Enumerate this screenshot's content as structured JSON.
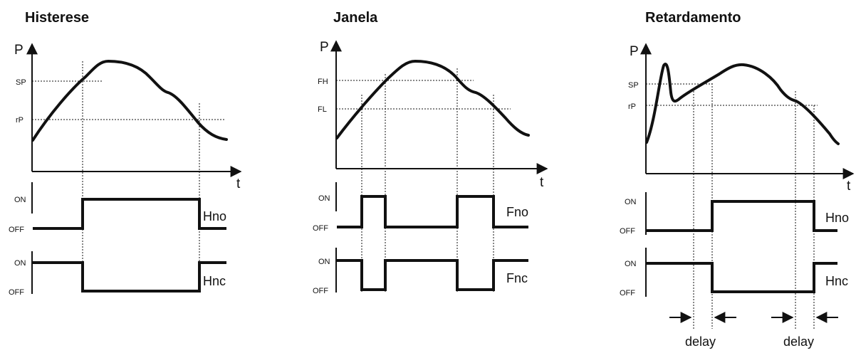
{
  "diagrams": [
    {
      "title": "Histerese",
      "y_axis": "P",
      "x_axis": "t",
      "levels": [
        "SP",
        "rP"
      ],
      "on_label": "ON",
      "off_label": "OFF",
      "outputs": [
        "Hno",
        "Hnc"
      ]
    },
    {
      "title": "Janela",
      "y_axis": "P",
      "x_axis": "t",
      "levels": [
        "FH",
        "FL"
      ],
      "on_label": "ON",
      "off_label": "OFF",
      "outputs": [
        "Fno",
        "Fnc"
      ]
    },
    {
      "title": "Retardamento",
      "y_axis": "P",
      "x_axis": "t",
      "levels": [
        "SP",
        "rP"
      ],
      "on_label": "ON",
      "off_label": "OFF",
      "outputs": [
        "Hno",
        "Hnc"
      ],
      "delay_labels": [
        "delay",
        "delay"
      ]
    }
  ],
  "colors": {
    "ink": "#111111",
    "background": "#ffffff"
  }
}
